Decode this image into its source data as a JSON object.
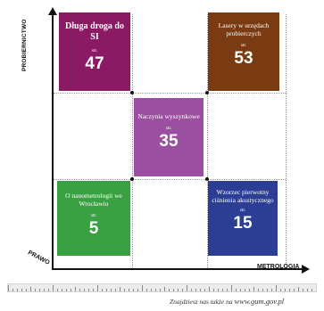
{
  "axes": {
    "y_label": "PROBIERNICTWO",
    "x_label": "METROLOGIA",
    "origin_label": "PRAWO"
  },
  "boxes": [
    {
      "id": "dluga-droga",
      "title": "Długa droga do SI",
      "page_label": "str.",
      "page": "47",
      "color": "#8a1a63"
    },
    {
      "id": "lasery",
      "title": "Lasery w urzędach probierczych",
      "page_label": "str.",
      "page": "53",
      "color": "#7a3a12"
    },
    {
      "id": "naczynia",
      "title": "Naczynia wyszynkowe",
      "page_label": "str.",
      "page": "35",
      "color": "#9b4fa0"
    },
    {
      "id": "nanometrologia",
      "title": "O nanometrologii we Wrocławiu",
      "page_label": "str.",
      "page": "5",
      "color": "#3aa142"
    },
    {
      "id": "wzorzec",
      "title": "Wzorzec pierwotny ciśnienia akustycznego",
      "page_label": "str.",
      "page": "15",
      "color": "#2b3e93"
    }
  ],
  "footer": {
    "text": "Znajdziesz nas także na",
    "site": "www.gum.gov.pl"
  }
}
